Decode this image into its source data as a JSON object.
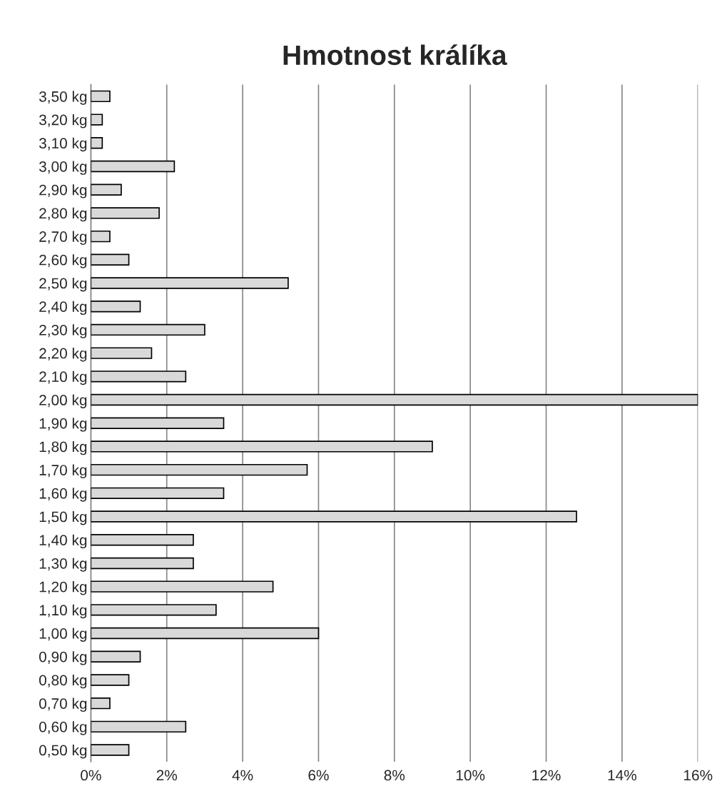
{
  "chart_data": {
    "type": "bar",
    "orientation": "horizontal",
    "title": "Hmotnost králíka",
    "categories": [
      "3,50 kg",
      "3,20 kg",
      "3,10 kg",
      "3,00 kg",
      "2,90 kg",
      "2,80 kg",
      "2,70 kg",
      "2,60 kg",
      "2,50 kg",
      "2,40 kg",
      "2,30 kg",
      "2,20 kg",
      "2,10 kg",
      "2,00 kg",
      "1,90 kg",
      "1,80 kg",
      "1,70 kg",
      "1,60 kg",
      "1,50 kg",
      "1,40 kg",
      "1,30 kg",
      "1,20 kg",
      "1,10 kg",
      "1,00 kg",
      "0,90 kg",
      "0,80 kg",
      "0,70 kg",
      "0,60 kg",
      "0,50 kg"
    ],
    "values": [
      0.5,
      0.3,
      0.3,
      2.2,
      0.8,
      1.8,
      0.5,
      1.0,
      5.2,
      1.3,
      3.0,
      1.6,
      2.5,
      16,
      3.5,
      9.0,
      5.7,
      3.5,
      12.8,
      2.7,
      2.7,
      4.8,
      3.3,
      6.0,
      1.3,
      1.0,
      0.5,
      2.5,
      1.0
    ],
    "color": "#d9d9d9",
    "xlim": [
      0,
      16
    ],
    "xticks": [
      {
        "value": 0,
        "label": "0%"
      },
      {
        "value": 2,
        "label": "2%"
      },
      {
        "value": 4,
        "label": "4%"
      },
      {
        "value": 6,
        "label": "6%"
      },
      {
        "value": 8,
        "label": "8%"
      },
      {
        "value": 10,
        "label": "10%"
      },
      {
        "value": 12,
        "label": "12%"
      },
      {
        "value": 14,
        "label": "14%"
      },
      {
        "value": 16,
        "label": "16%"
      }
    ],
    "grid": "x",
    "legend": false
  }
}
